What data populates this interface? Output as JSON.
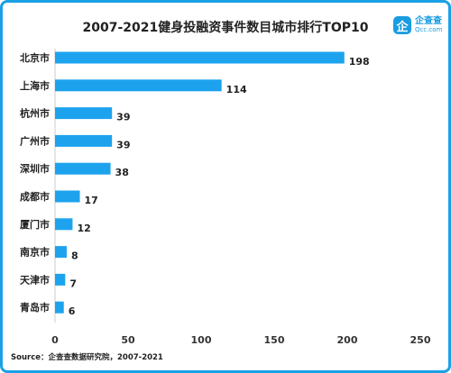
{
  "chart_data": {
    "type": "bar",
    "orientation": "horizontal",
    "title": "2007-2021健身投融资事件数目城市排行TOP10",
    "categories": [
      "北京市",
      "上海市",
      "杭州市",
      "广州市",
      "深圳市",
      "成都市",
      "厦门市",
      "南京市",
      "天津市",
      "青岛市"
    ],
    "values": [
      198,
      114,
      39,
      39,
      38,
      17,
      12,
      8,
      7,
      6
    ],
    "xlim": [
      0,
      250
    ],
    "xticks": [
      0,
      50,
      100,
      150,
      200,
      250
    ],
    "xlabel": "",
    "ylabel": "",
    "grid": false,
    "bar_color": "#1da3ee"
  },
  "source": "Source：企查查数据研究院，2007-2021",
  "logo": {
    "mark": "企",
    "cn": "企查查",
    "en": "Qcc.com"
  }
}
